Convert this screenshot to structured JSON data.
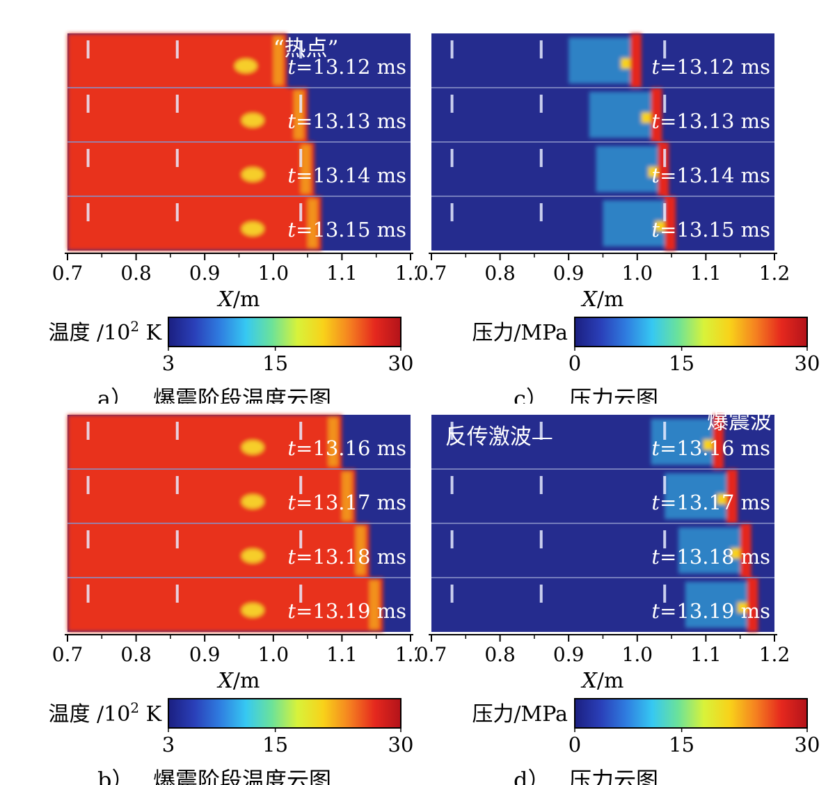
{
  "panels": [
    {
      "id": "a",
      "times": [
        "13.12 ms",
        "13.13 ms",
        "13.14 ms",
        "13.15 ms"
      ],
      "annotations": [
        "“热点”"
      ],
      "xlabel_var": "X",
      "xlabel_unit": "/m",
      "colorbar_label": "温度 /10",
      "colorbar_exp": "2",
      "colorbar_unit": " K",
      "colorbar_ticks": [
        "3",
        "15",
        "30"
      ],
      "caption_letter": "a）",
      "caption_text": "爆震阶段温度云图",
      "field": "temperature",
      "front_x": [
        1.02,
        1.05,
        1.06,
        1.07
      ]
    },
    {
      "id": "c",
      "times": [
        "13.12 ms",
        "13.13 ms",
        "13.14 ms",
        "13.15 ms"
      ],
      "annotations": [],
      "xlabel_var": "X",
      "xlabel_unit": "/m",
      "colorbar_label": "压力/MPa",
      "colorbar_exp": "",
      "colorbar_unit": "",
      "colorbar_ticks": [
        "0",
        "15",
        "30"
      ],
      "caption_letter": "c）",
      "caption_text": "压力云图",
      "field": "pressure",
      "front_x": [
        1.0,
        1.03,
        1.04,
        1.05
      ]
    },
    {
      "id": "b",
      "times": [
        "13.16 ms",
        "13.17 ms",
        "13.18 ms",
        "13.19 ms"
      ],
      "annotations": [],
      "xlabel_var": "X",
      "xlabel_unit": "/m",
      "colorbar_label": "温度 /10",
      "colorbar_exp": "2",
      "colorbar_unit": " K",
      "colorbar_ticks": [
        "3",
        "15",
        "30"
      ],
      "caption_letter": "b）",
      "caption_text": "爆震阶段温度云图",
      "field": "temperature",
      "front_x": [
        1.1,
        1.12,
        1.14,
        1.16
      ]
    },
    {
      "id": "d",
      "times": [
        "13.16 ms",
        "13.17 ms",
        "13.18 ms",
        "13.19 ms"
      ],
      "annotations": [
        "反传激波—",
        "爆震波"
      ],
      "xlabel_var": "X",
      "xlabel_unit": "/m",
      "colorbar_label": "压力/MPa",
      "colorbar_exp": "",
      "colorbar_unit": "",
      "colorbar_ticks": [
        "0",
        "15",
        "30"
      ],
      "caption_letter": "d）",
      "caption_text": "压力云图",
      "field": "pressure",
      "front_x": [
        1.12,
        1.14,
        1.16,
        1.17
      ]
    }
  ],
  "time_prefix": "t",
  "x_axis": {
    "ticks": [
      "0.7",
      "0.8",
      "0.9",
      "1.0",
      "1.1",
      "1.2"
    ],
    "range": [
      0.7,
      1.2
    ]
  },
  "colormap": [
    "#1b1f80",
    "#2a3fb8",
    "#2f7de0",
    "#36c8f2",
    "#6be29a",
    "#d8f23a",
    "#f8d21a",
    "#f58220",
    "#e5281e",
    "#b3131a"
  ],
  "colors": {
    "background_field": "#252c8e",
    "hot_gas": "#e8301f",
    "hot_spot": "#f7e02a"
  },
  "chart_data": [
    {
      "type": "heatmap",
      "title": "爆震阶段温度云图",
      "xlabel": "X/m",
      "xlim": [
        0.7,
        1.2
      ],
      "series": [
        {
          "name": "t=13.12 ms",
          "front_x": 1.02
        },
        {
          "name": "t=13.13 ms",
          "front_x": 1.05
        },
        {
          "name": "t=13.14 ms",
          "front_x": 1.06
        },
        {
          "name": "t=13.15 ms",
          "front_x": 1.07
        },
        {
          "name": "t=13.16 ms",
          "front_x": 1.1
        },
        {
          "name": "t=13.17 ms",
          "front_x": 1.12
        },
        {
          "name": "t=13.18 ms",
          "front_x": 1.14
        },
        {
          "name": "t=13.19 ms",
          "front_x": 1.16
        }
      ],
      "colorbar": {
        "label": "温度 /10^2 K",
        "range": [
          3,
          30
        ]
      }
    },
    {
      "type": "heatmap",
      "title": "压力云图",
      "xlabel": "X/m",
      "xlim": [
        0.7,
        1.2
      ],
      "series": [
        {
          "name": "t=13.12 ms",
          "front_x": 1.0
        },
        {
          "name": "t=13.13 ms",
          "front_x": 1.03
        },
        {
          "name": "t=13.14 ms",
          "front_x": 1.04
        },
        {
          "name": "t=13.15 ms",
          "front_x": 1.05
        },
        {
          "name": "t=13.16 ms",
          "front_x": 1.12
        },
        {
          "name": "t=13.17 ms",
          "front_x": 1.14
        },
        {
          "name": "t=13.18 ms",
          "front_x": 1.16
        },
        {
          "name": "t=13.19 ms",
          "front_x": 1.17
        }
      ],
      "colorbar": {
        "label": "压力/MPa",
        "range": [
          0,
          30
        ]
      }
    }
  ]
}
